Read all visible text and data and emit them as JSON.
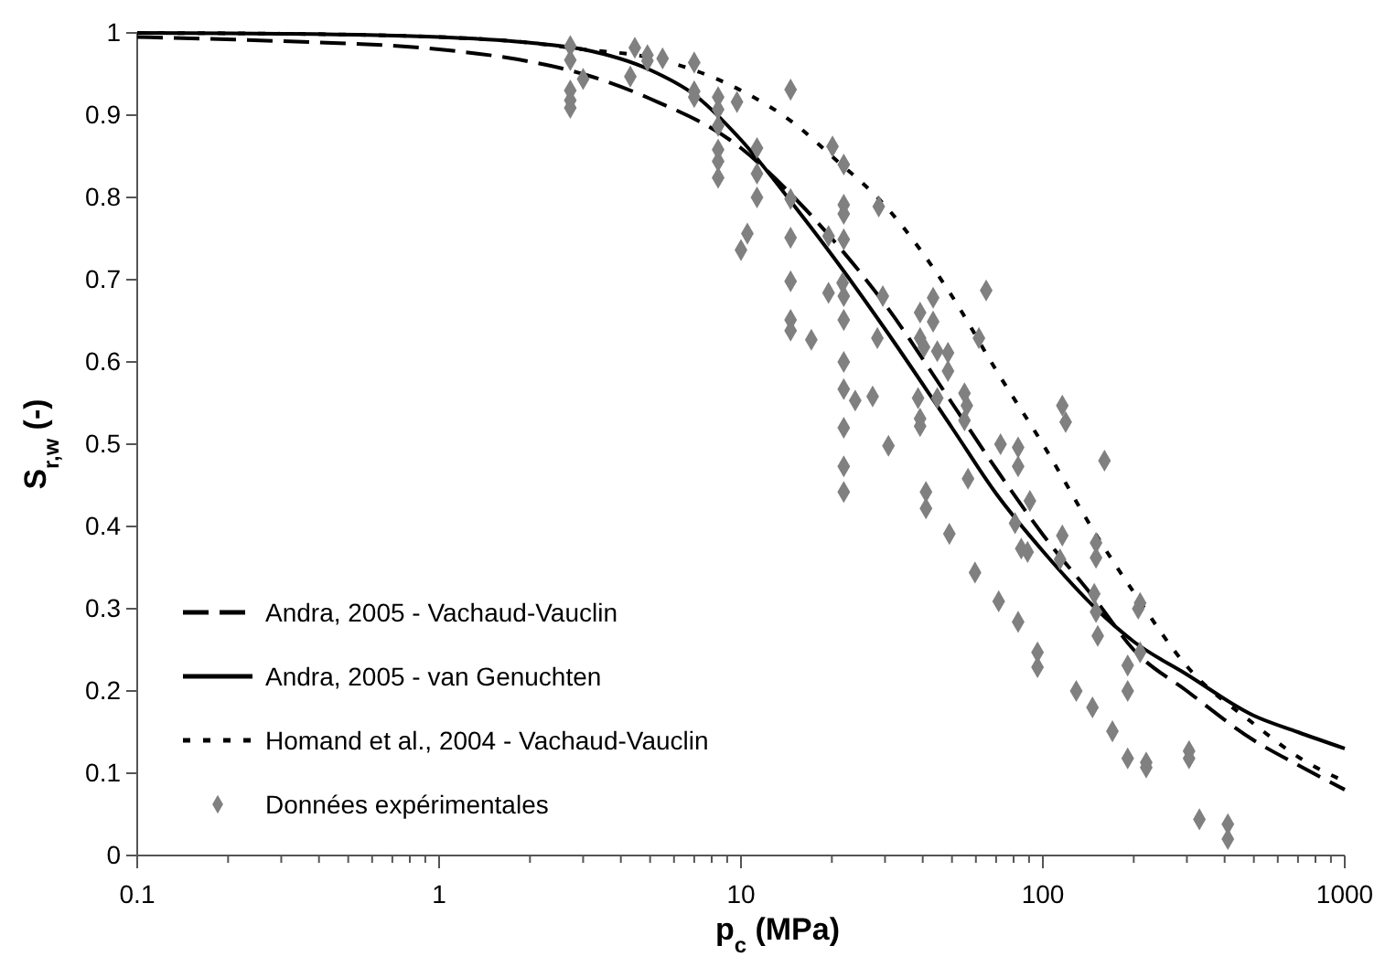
{
  "chart_data": {
    "type": "line",
    "xlabel": "p$_{c}$ (MPa)",
    "ylabel": "S$_{r,w}$ (-)",
    "log": "x",
    "xlim": [
      0.1,
      1000
    ],
    "ylim": [
      0,
      1
    ],
    "xticks": [
      0.1,
      {
        "value": 0.2,
        "label": null
      },
      {
        "value": 0.3,
        "label": null
      },
      {
        "value": 0.4,
        "label": null
      },
      {
        "value": 0.5,
        "label": null
      },
      {
        "value": 0.6,
        "label": null
      },
      {
        "value": 0.7,
        "label": null
      },
      {
        "value": 0.8,
        "label": null
      },
      {
        "value": 0.9,
        "label": null
      },
      1,
      {
        "value": 2,
        "label": null
      },
      {
        "value": 3,
        "label": null
      },
      {
        "value": 4,
        "label": null
      },
      {
        "value": 5,
        "label": null
      },
      {
        "value": 6,
        "label": null
      },
      {
        "value": 7,
        "label": null
      },
      {
        "value": 8,
        "label": null
      },
      {
        "value": 9,
        "label": null
      },
      10,
      {
        "value": 20,
        "label": null
      },
      {
        "value": 30,
        "label": null
      },
      {
        "value": 40,
        "label": null
      },
      {
        "value": 50,
        "label": null
      },
      {
        "value": 60,
        "label": null
      },
      {
        "value": 70,
        "label": null
      },
      {
        "value": 80,
        "label": null
      },
      {
        "value": 90,
        "label": null
      },
      100,
      {
        "value": 200,
        "label": null
      },
      {
        "value": 300,
        "label": null
      },
      {
        "value": 400,
        "label": null
      },
      {
        "value": 500,
        "label": null
      },
      {
        "value": 600,
        "label": null
      },
      {
        "value": 700,
        "label": null
      },
      {
        "value": 800,
        "label": null
      },
      {
        "value": 900,
        "label": null
      },
      1000
    ],
    "yticks": [
      0,
      0.1,
      0.2,
      0.3,
      0.4,
      0.5,
      0.6,
      0.7,
      0.8,
      0.9,
      1
    ],
    "grid": false,
    "legend": "bottom left",
    "series": [
      {
        "name": "Andra, 2005 - Vachaud-Vauclin",
        "color": "#000000",
        "line_style": "dashed",
        "marker": "none",
        "x": [
          0.1,
          0.3,
          1,
          2,
          3,
          5,
          10,
          15,
          20,
          30,
          50,
          70,
          100,
          150,
          200,
          300,
          500,
          700,
          1000
        ],
        "values": [
          0.995,
          0.99,
          0.98,
          0.965,
          0.95,
          0.92,
          0.86,
          0.8,
          0.75,
          0.67,
          0.55,
          0.47,
          0.39,
          0.31,
          0.25,
          0.2,
          0.14,
          0.11,
          0.08
        ]
      },
      {
        "name": "Andra, 2005 - van Genuchten",
        "color": "#000000",
        "line_style": "solid",
        "marker": "none",
        "x": [
          0.1,
          0.3,
          1,
          2,
          3,
          5,
          7,
          10,
          15,
          20,
          30,
          50,
          70,
          100,
          150,
          200,
          300,
          500,
          700,
          1000
        ],
        "values": [
          1,
          0.999,
          0.995,
          0.988,
          0.98,
          0.955,
          0.925,
          0.87,
          0.79,
          0.73,
          0.64,
          0.52,
          0.44,
          0.37,
          0.3,
          0.26,
          0.22,
          0.17,
          0.15,
          0.13
        ]
      },
      {
        "name": "Homand et al., 2004 - Vachaud-Vauclin",
        "color": "#000000",
        "line_style": "dotted",
        "marker": "none",
        "x": [
          0.1,
          0.3,
          1,
          2,
          3,
          5,
          10,
          15,
          20,
          30,
          50,
          70,
          100,
          150,
          200,
          300,
          500,
          700,
          1000
        ],
        "values": [
          1,
          0.999,
          0.995,
          0.988,
          0.98,
          0.97,
          0.93,
          0.89,
          0.85,
          0.79,
          0.68,
          0.59,
          0.5,
          0.39,
          0.32,
          0.23,
          0.16,
          0.12,
          0.09
        ]
      },
      {
        "name": "Données expérimentales",
        "type": "scatter",
        "color": "#808080",
        "marker": "diamond",
        "x": [
          2.72,
          2.72,
          2.72,
          2.72,
          2.72,
          3.0,
          4.45,
          4.9,
          4.9,
          5.5,
          4.3,
          7.0,
          7.0,
          7.0,
          8.4,
          8.4,
          9.7,
          8.4,
          8.4,
          8.4,
          8.4,
          11.3,
          11.3,
          11.3,
          10.5,
          10,
          14.6,
          14.6,
          14.6,
          14.6,
          14.6,
          14.6,
          17.1,
          20.1,
          21.9,
          21.9,
          21.9,
          28.6,
          19.5,
          21.9,
          21.7,
          21.9,
          29.5,
          21.9,
          28.3,
          21.9,
          21.9,
          23.9,
          27.3,
          21.9,
          30.8,
          19.5,
          21.9,
          21.9,
          43.3,
          39.2,
          43.3,
          64.9,
          39.2,
          40.4,
          44.7,
          48.5,
          48.5,
          61.4,
          38.6,
          39.2,
          39.2,
          44.7,
          55,
          56,
          55,
          56.5,
          41,
          41,
          49,
          59.6,
          71.4,
          82.8,
          72.4,
          82.8,
          82.8,
          90.6,
          80.9,
          84.8,
          89,
          116,
          119,
          160,
          116,
          114,
          150,
          150,
          148,
          150,
          152,
          210,
          207,
          210,
          191,
          191,
          96,
          96,
          129,
          146,
          170,
          191,
          220,
          220,
          305,
          305,
          330,
          410,
          410
        ],
        "values": [
          0.984,
          0.967,
          0.93,
          0.918,
          0.909,
          0.944,
          0.982,
          0.973,
          0.966,
          0.969,
          0.947,
          0.964,
          0.929,
          0.922,
          0.922,
          0.907,
          0.916,
          0.887,
          0.858,
          0.844,
          0.824,
          0.86,
          0.829,
          0.8,
          0.756,
          0.736,
          0.931,
          0.798,
          0.751,
          0.698,
          0.651,
          0.638,
          0.627,
          0.862,
          0.84,
          0.791,
          0.78,
          0.789,
          0.753,
          0.749,
          0.696,
          0.68,
          0.68,
          0.651,
          0.629,
          0.6,
          0.567,
          0.553,
          0.558,
          0.52,
          0.498,
          0.684,
          0.473,
          0.442,
          0.678,
          0.66,
          0.649,
          0.687,
          0.629,
          0.618,
          0.613,
          0.611,
          0.589,
          0.629,
          0.556,
          0.531,
          0.522,
          0.556,
          0.562,
          0.547,
          0.529,
          0.458,
          0.442,
          0.422,
          0.391,
          0.344,
          0.309,
          0.284,
          0.5,
          0.496,
          0.473,
          0.431,
          0.404,
          0.373,
          0.369,
          0.547,
          0.527,
          0.48,
          0.389,
          0.36,
          0.38,
          0.362,
          0.318,
          0.296,
          0.267,
          0.307,
          0.3,
          0.247,
          0.231,
          0.2,
          0.247,
          0.229,
          0.2,
          0.18,
          0.151,
          0.118,
          0.113,
          0.107,
          0.127,
          0.118,
          0.044,
          0.038,
          0.02
        ]
      }
    ]
  }
}
